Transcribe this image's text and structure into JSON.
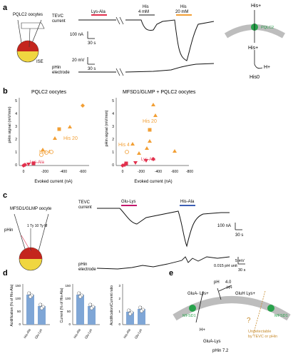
{
  "panels": {
    "a": {
      "label": "a",
      "cell_label": "PQLC2 oocytes",
      "tevc_label": [
        "TEVC",
        "current"
      ],
      "ph_label": [
        "pHin",
        "electrode"
      ],
      "ise_label": "ISE",
      "bars": [
        {
          "label": "Lys-Ala",
          "color": "#e2304d"
        },
        {
          "label": "His",
          "sub": "4 mM",
          "color": "#8a8a8a"
        },
        {
          "label": "His",
          "sub": "20 mM",
          "color": "#f29f35"
        }
      ],
      "scale_current": "100 nA",
      "scale_time": "30 s",
      "scale_mv": "20 mV",
      "scale_time2": "30 s",
      "schematic": {
        "his_top": "His+",
        "protein": "PQLC2",
        "his_mid": "His+",
        "proton": "H+",
        "his_bot": "His0"
      }
    },
    "b": {
      "label": "b",
      "left": {
        "title": "PQLC2 oocytes",
        "xlabel": "Evoked current (nA)",
        "ylabel": "pHin signal (mV/min)",
        "xticks": [
          "0",
          "-200",
          "-400",
          "-600"
        ],
        "yticks": [
          "0",
          "1",
          "2",
          "3",
          "4",
          "5"
        ],
        "series_labels": [
          "His 20",
          "His 4",
          "Lys-Ala"
        ]
      },
      "right": {
        "title": "MFSD1/GLMP + PQLC2 oocytes",
        "xlabel": "Evoked current (nA)",
        "ylabel": "pHin signal (mV/min)",
        "xticks": [
          "0",
          "-200",
          "-400",
          "-600",
          "-800"
        ],
        "yticks": [
          "0",
          "1",
          "2",
          "3",
          "4",
          "5"
        ],
        "series_labels": [
          "His 20",
          "His 4",
          "Lys-Ala"
        ]
      }
    },
    "c": {
      "label": "c",
      "cell_label": "MFSD1/GLMP oocyte",
      "tevc_label": [
        "TEVC",
        "current"
      ],
      "ph_label": [
        "pHin",
        "electrode"
      ],
      "bars": [
        {
          "label": "Glu-Lys",
          "color": "#c2186b"
        },
        {
          "label": "His-Ala",
          "color": "#3d5fb5"
        }
      ],
      "scale_current": "100 nA",
      "scale_time": "30 s",
      "scale_mv": "5 mV",
      "scale_ph": "0.015 pH unit",
      "scale_time2": "30 s",
      "cell_annot": "1 Ty 10 Ty M"
    },
    "d": {
      "label": "d",
      "plots": [
        {
          "ylabel": "Acidification (% of His-Ala)",
          "yticks": [
            "0",
            "50",
            "100",
            "150"
          ],
          "categories": [
            "His-Ala",
            "Glu-Lys"
          ]
        },
        {
          "ylabel": "Current (% of His-Ala)",
          "yticks": [
            "0",
            "50",
            "100",
            "150"
          ],
          "categories": [
            "His-Ala",
            "Glu-Lys"
          ]
        },
        {
          "ylabel": "Acidification/Current ratio",
          "yticks": [
            "0",
            "1",
            "2",
            "3"
          ],
          "categories": [
            "His-Ala",
            "Glu-Lys"
          ]
        }
      ]
    },
    "e": {
      "label": "e",
      "top_label": "pH",
      "top_value": "4.0",
      "glu_left": "GluA- Lys+",
      "glu_right": "GluH Lys+",
      "proton_top": "H+",
      "proton_bot": "H+",
      "mfsd1_left": "MFSD1",
      "mfsd1_right": "MFSD1",
      "glu_bottom": "GluA-Lys",
      "ph_bottom": "pHin 7.2",
      "question": "?",
      "note": [
        "Undetectable",
        "by TEVC or pHin"
      ]
    }
  },
  "colors": {
    "orange": "#f29f35",
    "red": "#e2304d",
    "gray": "#8a8a8a",
    "green": "#27a24b",
    "blue": "#7fa6d6",
    "magenta": "#c2186b",
    "navy": "#3d5fb5"
  }
}
